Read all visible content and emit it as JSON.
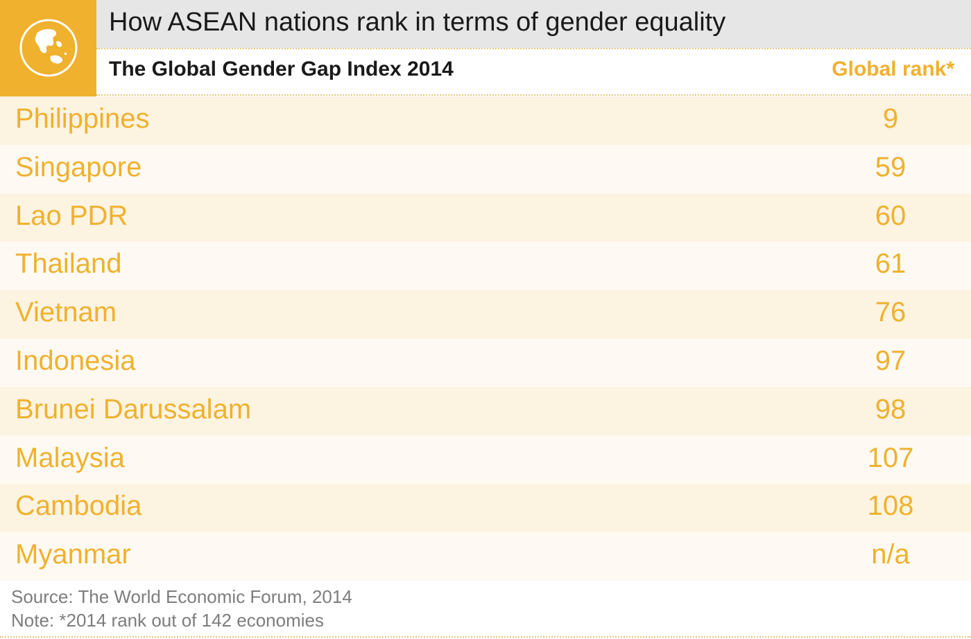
{
  "header": {
    "title": "How ASEAN nations rank in terms of gender equality",
    "subtitle": "The Global Gender Gap Index 2014",
    "rank_column_label": "Global rank*",
    "badge_icon": "globe-icon"
  },
  "colors": {
    "accent": "#efb12e",
    "title_bar": "#e6e6e6",
    "row_odd": "#fdf3e1",
    "row_even": "#fefaf3",
    "footnote_text": "#7d7d7d"
  },
  "chart_data": {
    "type": "table",
    "title": "How ASEAN nations rank in terms of gender equality",
    "subtitle": "The Global Gender Gap Index 2014",
    "columns": [
      "",
      "Global rank*"
    ],
    "rows": [
      {
        "country": "Philippines",
        "rank": "9"
      },
      {
        "country": "Singapore",
        "rank": "59"
      },
      {
        "country": "Lao PDR",
        "rank": "60"
      },
      {
        "country": "Thailand",
        "rank": "61"
      },
      {
        "country": "Vietnam",
        "rank": "76"
      },
      {
        "country": "Indonesia",
        "rank": "97"
      },
      {
        "country": "Brunei Darussalam",
        "rank": "98"
      },
      {
        "country": "Malaysia",
        "rank": "107"
      },
      {
        "country": "Cambodia",
        "rank": "108"
      },
      {
        "country": "Myanmar",
        "rank": "n/a"
      }
    ]
  },
  "footer": {
    "source": "Source: The World Economic Forum, 2014",
    "note": "Note: *2014 rank out of 142 economies"
  }
}
